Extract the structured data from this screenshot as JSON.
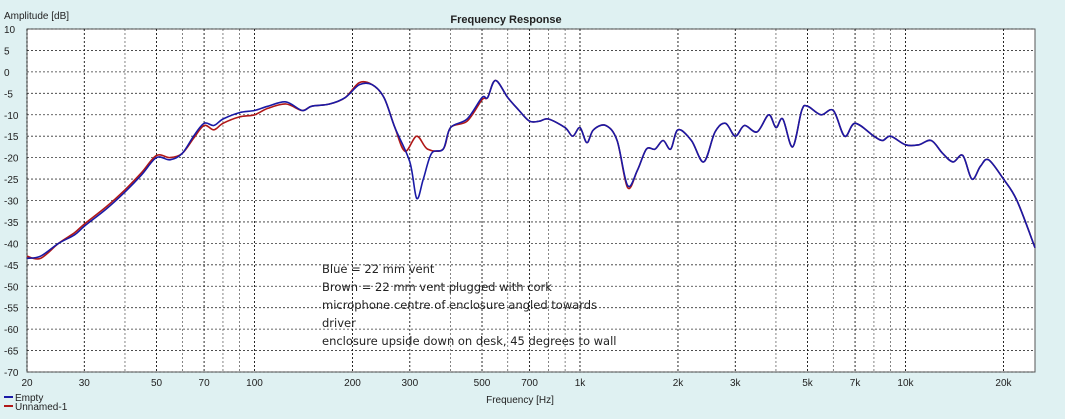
{
  "chart_data": {
    "type": "line",
    "title": "Frequency Response",
    "ylabel": "Amplitude [dB]",
    "xlabel": "Frequency [Hz]",
    "x_scale": "log",
    "xlim": [
      20,
      25000
    ],
    "ylim": [
      -70,
      10
    ],
    "grid": true,
    "yticks": [
      10,
      5,
      0,
      -5,
      -10,
      -15,
      -20,
      -25,
      -30,
      -35,
      -40,
      -45,
      -50,
      -55,
      -60,
      -65,
      -70
    ],
    "xticks": [
      {
        "value": 20,
        "label": "20"
      },
      {
        "value": 30,
        "label": "30"
      },
      {
        "value": 50,
        "label": "50"
      },
      {
        "value": 70,
        "label": "70"
      },
      {
        "value": 100,
        "label": "100"
      },
      {
        "value": 200,
        "label": "200"
      },
      {
        "value": 300,
        "label": "300"
      },
      {
        "value": 500,
        "label": "500"
      },
      {
        "value": 700,
        "label": "700"
      },
      {
        "value": 1000,
        "label": "1k"
      },
      {
        "value": 2000,
        "label": "2k"
      },
      {
        "value": 3000,
        "label": "3k"
      },
      {
        "value": 5000,
        "label": "5k"
      },
      {
        "value": 7000,
        "label": "7k"
      },
      {
        "value": 10000,
        "label": "10k"
      },
      {
        "value": 20000,
        "label": "20k"
      }
    ],
    "minor_x": [
      40,
      60,
      80,
      90,
      400,
      600,
      800,
      900,
      4000,
      6000,
      8000,
      9000
    ],
    "series": [
      {
        "name": "Empty",
        "color": "#1a1aa6",
        "points": [
          [
            20,
            -43.5
          ],
          [
            22,
            -43
          ],
          [
            25,
            -40
          ],
          [
            28,
            -38
          ],
          [
            30,
            -36
          ],
          [
            35,
            -32
          ],
          [
            40,
            -28
          ],
          [
            45,
            -24
          ],
          [
            50,
            -20
          ],
          [
            55,
            -20.5
          ],
          [
            60,
            -19
          ],
          [
            65,
            -15
          ],
          [
            70,
            -12
          ],
          [
            75,
            -12.5
          ],
          [
            80,
            -11
          ],
          [
            90,
            -9.5
          ],
          [
            100,
            -9
          ],
          [
            110,
            -8
          ],
          [
            125,
            -7
          ],
          [
            140,
            -9
          ],
          [
            150,
            -8
          ],
          [
            170,
            -7.5
          ],
          [
            190,
            -6
          ],
          [
            210,
            -3
          ],
          [
            230,
            -3
          ],
          [
            250,
            -6
          ],
          [
            270,
            -13
          ],
          [
            300,
            -21
          ],
          [
            315,
            -29.5
          ],
          [
            330,
            -25
          ],
          [
            350,
            -19
          ],
          [
            380,
            -18
          ],
          [
            400,
            -13
          ],
          [
            450,
            -11
          ],
          [
            500,
            -6
          ],
          [
            520,
            -6
          ],
          [
            550,
            -2
          ],
          [
            600,
            -6
          ],
          [
            650,
            -9
          ],
          [
            700,
            -11.5
          ],
          [
            750,
            -11.5
          ],
          [
            800,
            -11
          ],
          [
            900,
            -13
          ],
          [
            950,
            -15
          ],
          [
            1000,
            -13
          ],
          [
            1050,
            -16.5
          ],
          [
            1100,
            -13.5
          ],
          [
            1200,
            -12.5
          ],
          [
            1300,
            -16
          ],
          [
            1400,
            -26.5
          ],
          [
            1500,
            -23
          ],
          [
            1600,
            -18
          ],
          [
            1700,
            -18
          ],
          [
            1800,
            -16
          ],
          [
            1900,
            -18
          ],
          [
            2000,
            -13.5
          ],
          [
            2200,
            -16
          ],
          [
            2400,
            -21
          ],
          [
            2600,
            -14
          ],
          [
            2800,
            -12
          ],
          [
            3000,
            -15
          ],
          [
            3200,
            -12.5
          ],
          [
            3500,
            -14
          ],
          [
            3800,
            -10
          ],
          [
            4000,
            -13
          ],
          [
            4200,
            -11
          ],
          [
            4500,
            -17.5
          ],
          [
            4800,
            -9
          ],
          [
            5000,
            -8
          ],
          [
            5500,
            -10
          ],
          [
            6000,
            -9
          ],
          [
            6500,
            -15
          ],
          [
            7000,
            -12
          ],
          [
            8000,
            -15
          ],
          [
            8500,
            -16
          ],
          [
            9000,
            -15
          ],
          [
            10000,
            -17
          ],
          [
            11000,
            -17
          ],
          [
            12000,
            -16
          ],
          [
            13000,
            -19
          ],
          [
            14000,
            -21
          ],
          [
            15000,
            -19.5
          ],
          [
            16000,
            -25
          ],
          [
            17000,
            -22
          ],
          [
            18000,
            -20.5
          ],
          [
            20000,
            -25
          ],
          [
            22000,
            -30
          ],
          [
            25000,
            -41
          ]
        ]
      },
      {
        "name": "Unnamed-1",
        "color": "#b01818",
        "points": [
          [
            20,
            -43
          ],
          [
            22,
            -43.5
          ],
          [
            25,
            -40
          ],
          [
            28,
            -37.5
          ],
          [
            30,
            -35.5
          ],
          [
            35,
            -31.5
          ],
          [
            40,
            -27.5
          ],
          [
            45,
            -23.5
          ],
          [
            50,
            -19.5
          ],
          [
            55,
            -20
          ],
          [
            60,
            -19
          ],
          [
            65,
            -15.5
          ],
          [
            70,
            -12.5
          ],
          [
            75,
            -13.5
          ],
          [
            80,
            -12
          ],
          [
            90,
            -10.5
          ],
          [
            100,
            -10
          ],
          [
            110,
            -8.5
          ],
          [
            125,
            -7.5
          ],
          [
            140,
            -9
          ],
          [
            150,
            -8
          ],
          [
            170,
            -7.5
          ],
          [
            190,
            -6
          ],
          [
            210,
            -2.5
          ],
          [
            230,
            -3
          ],
          [
            250,
            -6
          ],
          [
            270,
            -13
          ],
          [
            290,
            -18.5
          ],
          [
            315,
            -15
          ],
          [
            340,
            -18
          ],
          [
            380,
            -18
          ],
          [
            400,
            -13
          ],
          [
            450,
            -11.5
          ],
          [
            500,
            -6.5
          ],
          [
            520,
            -6
          ],
          [
            550,
            -2
          ],
          [
            600,
            -6
          ],
          [
            650,
            -9
          ],
          [
            700,
            -11.5
          ],
          [
            750,
            -11.5
          ],
          [
            800,
            -11
          ],
          [
            900,
            -13
          ],
          [
            950,
            -15
          ],
          [
            1000,
            -13
          ],
          [
            1050,
            -16.5
          ],
          [
            1100,
            -13.5
          ],
          [
            1200,
            -12.5
          ],
          [
            1300,
            -16
          ],
          [
            1400,
            -27
          ],
          [
            1500,
            -23
          ],
          [
            1600,
            -18
          ],
          [
            1700,
            -18
          ],
          [
            1800,
            -16
          ],
          [
            1900,
            -18
          ],
          [
            2000,
            -13.5
          ],
          [
            2200,
            -16
          ],
          [
            2400,
            -21
          ],
          [
            2600,
            -14
          ],
          [
            2800,
            -12
          ],
          [
            3000,
            -15
          ],
          [
            3200,
            -12.5
          ],
          [
            3500,
            -14
          ],
          [
            3800,
            -10
          ],
          [
            4000,
            -13
          ],
          [
            4200,
            -11
          ],
          [
            4500,
            -17.5
          ],
          [
            4800,
            -9
          ],
          [
            5000,
            -8
          ],
          [
            5500,
            -10
          ],
          [
            6000,
            -9
          ],
          [
            6500,
            -15
          ],
          [
            7000,
            -12
          ],
          [
            8000,
            -15
          ],
          [
            8500,
            -16
          ],
          [
            9000,
            -15
          ],
          [
            10000,
            -17
          ],
          [
            11000,
            -17
          ],
          [
            12000,
            -16
          ],
          [
            13000,
            -19
          ],
          [
            14000,
            -21
          ],
          [
            15000,
            -19.5
          ],
          [
            16000,
            -25
          ],
          [
            17000,
            -22
          ],
          [
            18000,
            -20.5
          ],
          [
            20000,
            -25
          ],
          [
            22000,
            -30
          ],
          [
            25000,
            -41
          ]
        ]
      }
    ],
    "annotation": [
      "Blue = 22 mm vent",
      "Brown = 22 mm vent plugged with cork",
      "microphone centre of enclosure angled towards driver",
      "enclosure upside down on desk, 45 degrees to wall"
    ]
  }
}
